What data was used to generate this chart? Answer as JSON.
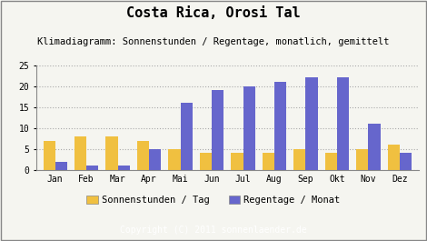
{
  "title": "Costa Rica, Orosi Tal",
  "subtitle": "Klimadiagramm: Sonnenstunden / Regentage, monatlich, gemittelt",
  "months": [
    "Jan",
    "Feb",
    "Mar",
    "Apr",
    "Mai",
    "Jun",
    "Jul",
    "Aug",
    "Sep",
    "Okt",
    "Nov",
    "Dez"
  ],
  "sonnenstunden": [
    7,
    8,
    8,
    7,
    5,
    4,
    4,
    4,
    5,
    4,
    5,
    6
  ],
  "regentage": [
    2,
    1,
    1,
    5,
    16,
    19,
    20,
    21,
    22,
    22,
    11,
    4
  ],
  "color_sonnen": "#f0c040",
  "color_regen": "#6666cc",
  "background_main": "#f5f5f0",
  "background_footer": "#aaaaaa",
  "border_color": "#888888",
  "ylim": [
    0,
    25
  ],
  "yticks": [
    0,
    5,
    10,
    15,
    20,
    25
  ],
  "legend_label_sonnen": "Sonnenstunden / Tag",
  "legend_label_regen": "Regentage / Monat",
  "copyright": "Copyright (C) 2011 sonnenlaender.de",
  "bar_width": 0.38,
  "title_fontsize": 11,
  "subtitle_fontsize": 7.5,
  "axis_fontsize": 7,
  "legend_fontsize": 7.5,
  "footer_fontsize": 7
}
